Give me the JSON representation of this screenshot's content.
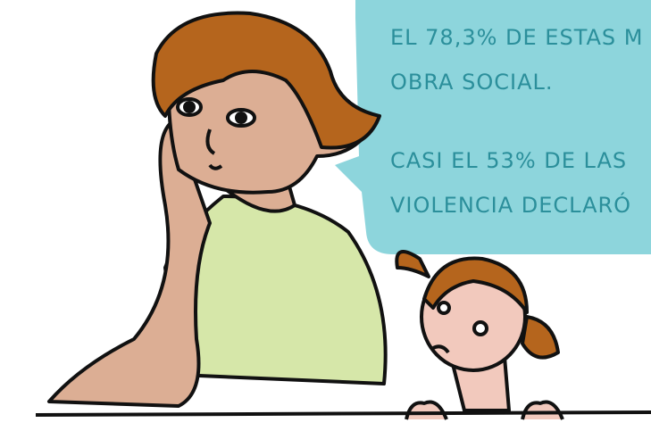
{
  "bubble": {
    "lines": [
      "EL 78,3% DE ESTAS M",
      "OBRA SOCIAL.",
      "CASI EL 53% DE LAS",
      "VIOLENCIA DECLARÓ"
    ]
  }
}
